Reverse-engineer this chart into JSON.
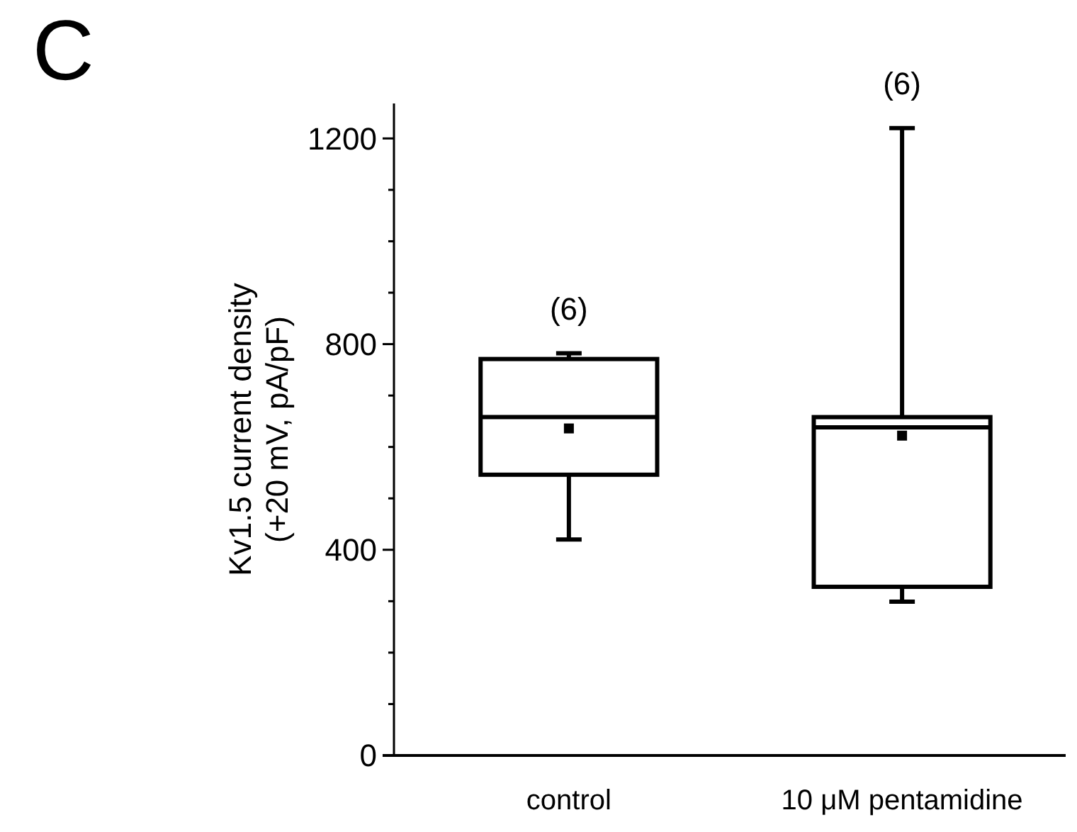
{
  "chart_data": {
    "type": "box",
    "title": "C",
    "ylabel": "Kv1.5 current density\n(+20 mV, pA/pF)",
    "categories": [
      "control",
      "10 μM pentamidine"
    ],
    "boxes": [
      {
        "low": 420,
        "q1": 546,
        "median": 658,
        "q3": 771,
        "high": 782,
        "mean": 636
      },
      {
        "low": 299,
        "q1": 328,
        "median": 638,
        "q3": 658,
        "high": 1220,
        "mean": 622
      }
    ],
    "ylim": [
      0,
      1268
    ],
    "yticks": [
      0,
      {
        "value": 100,
        "label": null
      },
      {
        "value": 200,
        "label": null
      },
      {
        "value": 300,
        "label": null
      },
      400,
      {
        "value": 500,
        "label": null
      },
      {
        "value": 600,
        "label": null
      },
      {
        "value": 700,
        "label": null
      },
      800,
      {
        "value": 900,
        "label": null
      },
      {
        "value": 1000,
        "label": null
      },
      {
        "value": 1100,
        "label": null
      },
      1200
    ],
    "annotations": [
      {
        "text": "(6)",
        "x": "control",
        "y": 782
      },
      {
        "text": "(6)",
        "x": "10 μM pentamidine",
        "y": 1220
      }
    ]
  }
}
